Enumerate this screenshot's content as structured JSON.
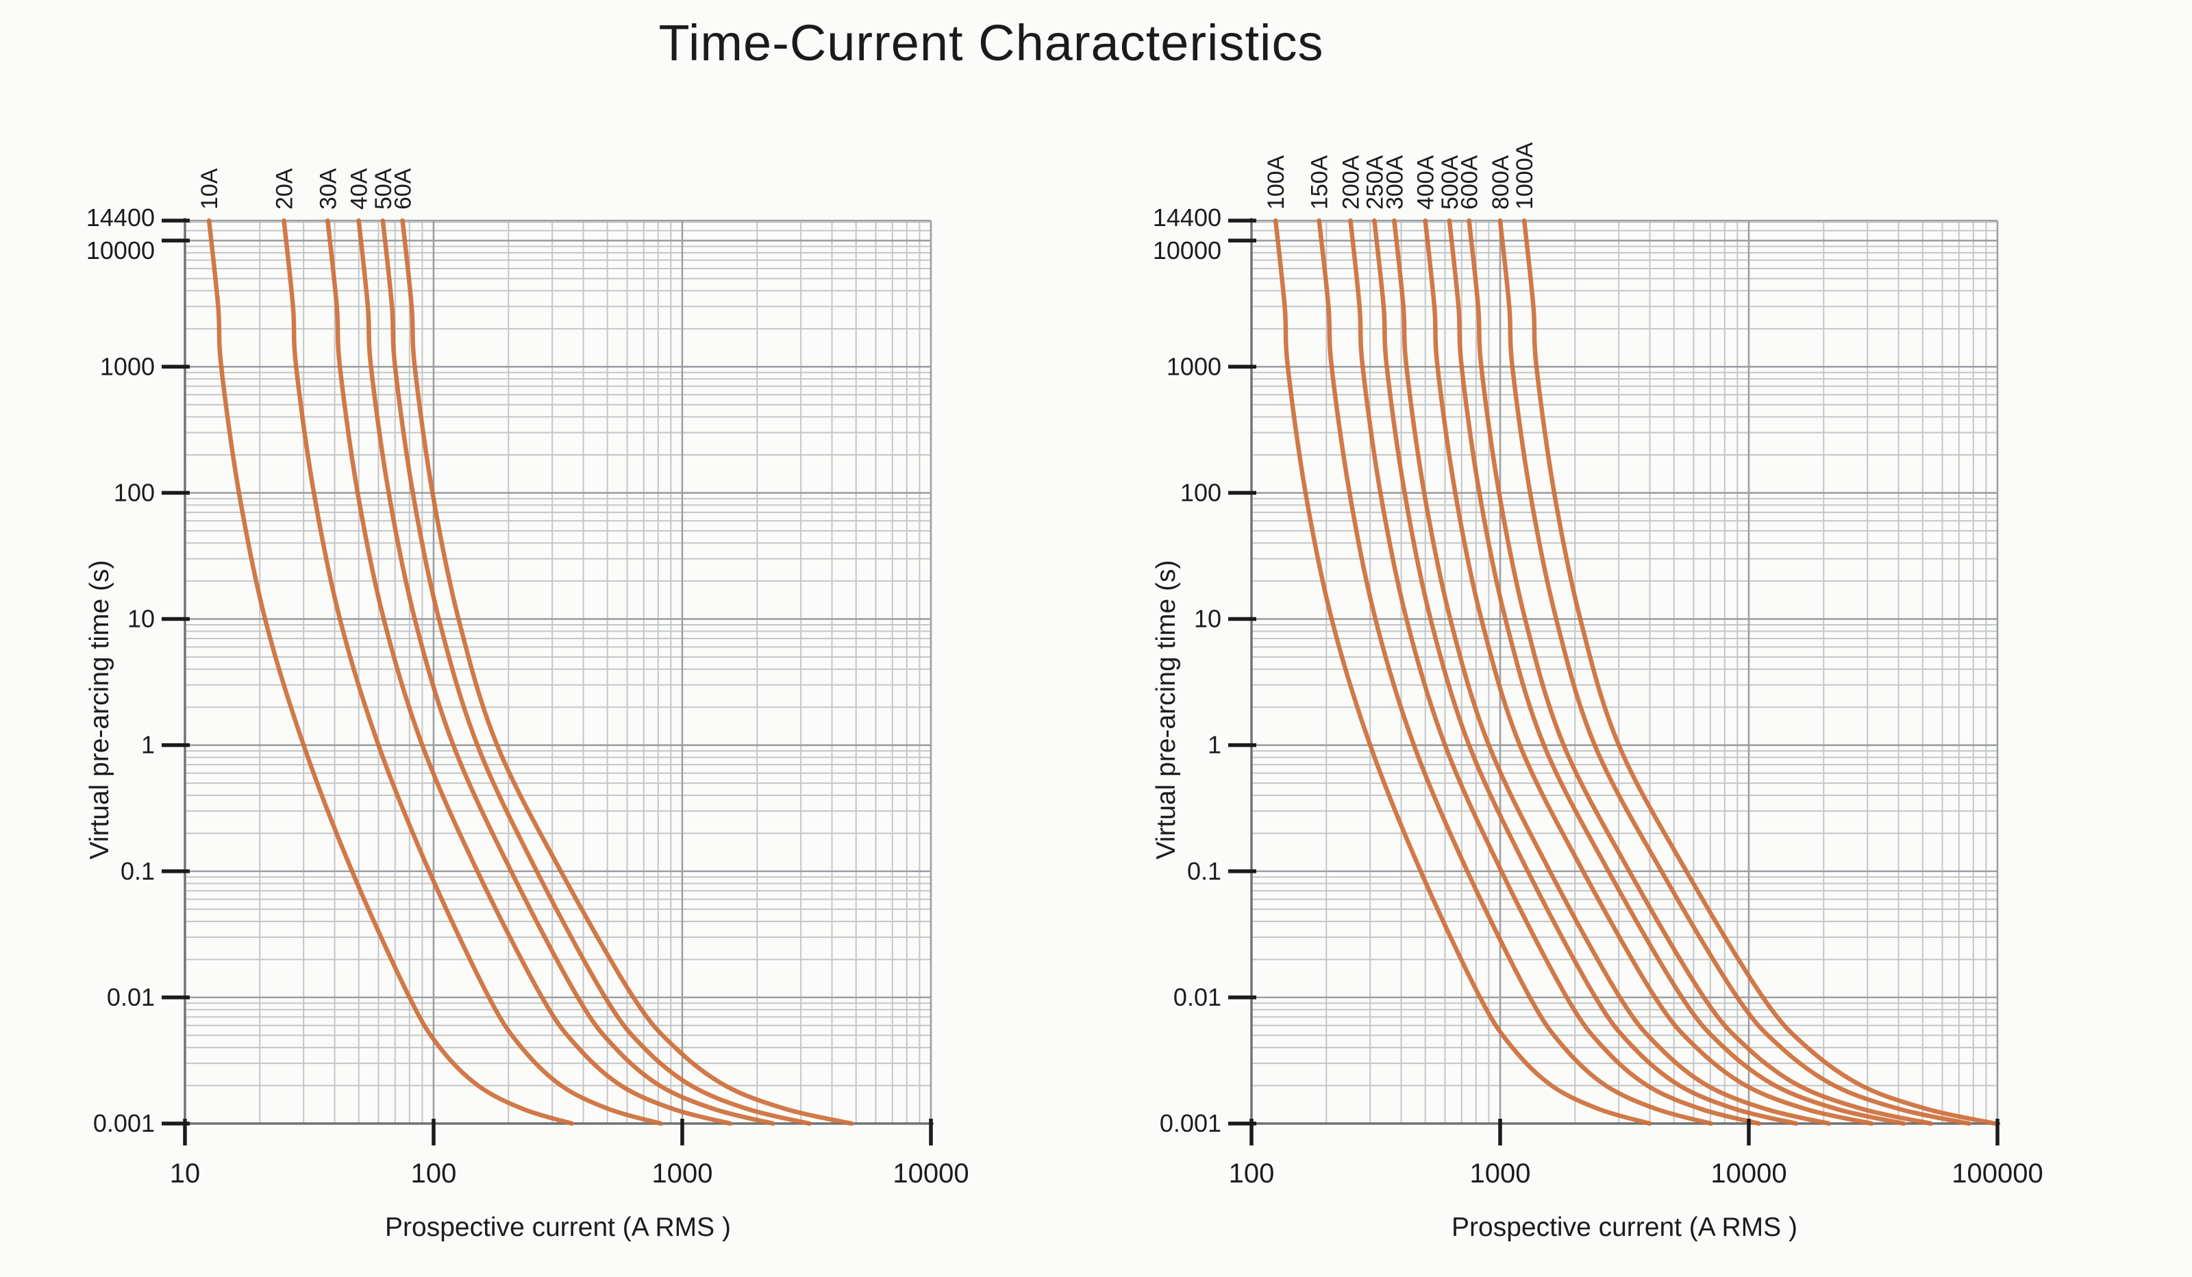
{
  "title": "Time-Current Characteristics",
  "colors": {
    "curve": "#cd6f3a",
    "grid_minor": "#c3c6c9",
    "grid_major": "#9ca0a4",
    "spine": "#6e7174",
    "tick": "#1b1b1b",
    "text": "#1c1c1c",
    "background": "#fbfbf9"
  },
  "chart_data": [
    {
      "id": "left",
      "type": "line",
      "title": "Time-Current Characteristics",
      "xlabel": "Prospective current (A RMS )",
      "ylabel": "Virtual pre-arcing time (s)",
      "x_scale": "log",
      "y_scale": "log",
      "xlim": [
        10,
        10000
      ],
      "ylim": [
        0.001,
        14400
      ],
      "x_ticks": [
        10,
        100,
        1000,
        10000
      ],
      "x_tick_labels": [
        "10",
        "100",
        "1000",
        "10000"
      ],
      "y_ticks": [
        14400,
        10000,
        1000,
        100,
        10,
        1,
        0.1,
        0.01,
        0.001
      ],
      "y_tick_labels": [
        "14400",
        "10000",
        "1000",
        "100",
        "10",
        "1",
        "0.1",
        "0.01",
        "0.001"
      ],
      "grid": "log major + minor, both axes",
      "legend_position": "curve labels rotated vertically above top edge",
      "series": [
        {
          "name": "10A",
          "points": [
            [
              12.5,
              14400
            ],
            [
              13.6,
              3000
            ],
            [
              14,
              1000
            ],
            [
              16.5,
              100
            ],
            [
              21,
              10
            ],
            [
              30,
              1
            ],
            [
              47,
              0.1
            ],
            [
              80,
              0.01
            ],
            [
              106,
              0.004
            ],
            [
              151,
              0.002
            ],
            [
              230,
              0.0013
            ],
            [
              360,
              0.001
            ]
          ]
        },
        {
          "name": "20A",
          "points": [
            [
              25,
              14400
            ],
            [
              27.2,
              3000
            ],
            [
              28,
              1000
            ],
            [
              33,
              100
            ],
            [
              42,
              10
            ],
            [
              60,
              1
            ],
            [
              96,
              0.1
            ],
            [
              167,
              0.01
            ],
            [
              226,
              0.004
            ],
            [
              326,
              0.002
            ],
            [
              508,
              0.0013
            ],
            [
              820,
              0.001
            ]
          ]
        },
        {
          "name": "30A",
          "points": [
            [
              37.5,
              14400
            ],
            [
              40.8,
              3000
            ],
            [
              42,
              1000
            ],
            [
              49.5,
              100
            ],
            [
              63,
              10
            ],
            [
              90,
              1
            ],
            [
              150,
              0.1
            ],
            [
              273,
              0.01
            ],
            [
              381,
              0.004
            ],
            [
              567,
              0.002
            ],
            [
              924,
              0.0013
            ],
            [
              1560,
              0.001
            ]
          ]
        },
        {
          "name": "40A",
          "points": [
            [
              50,
              14400
            ],
            [
              54.4,
              3000
            ],
            [
              56,
              1000
            ],
            [
              66,
              100
            ],
            [
              84,
              10
            ],
            [
              120,
              1
            ],
            [
              205,
              0.1
            ],
            [
              380,
              0.01
            ],
            [
              536,
              0.004
            ],
            [
              812,
              0.002
            ],
            [
              1348,
              0.0013
            ],
            [
              2320,
              0.001
            ]
          ]
        },
        {
          "name": "50A",
          "points": [
            [
              62.5,
              14400
            ],
            [
              68,
              3000
            ],
            [
              70,
              1000
            ],
            [
              82.5,
              100
            ],
            [
              105,
              10
            ],
            [
              150,
              1
            ],
            [
              260,
              0.1
            ],
            [
              490,
              0.01
            ],
            [
              700,
              0.004
            ],
            [
              1085,
              0.002
            ],
            [
              1840,
              0.0013
            ],
            [
              3250,
              0.001
            ]
          ]
        },
        {
          "name": "60A",
          "points": [
            [
              75,
              14400
            ],
            [
              81.6,
              3000
            ],
            [
              84,
              1000
            ],
            [
              99,
              100
            ],
            [
              126,
              10
            ],
            [
              180,
              1
            ],
            [
              325,
              0.1
            ],
            [
              636,
              0.01
            ],
            [
              936,
              0.004
            ],
            [
              1488,
              0.002
            ],
            [
              2620,
              0.0013
            ],
            [
              4800,
              0.001
            ]
          ]
        }
      ]
    },
    {
      "id": "right",
      "type": "line",
      "title": "Time-Current Characteristics",
      "xlabel": "Prospective current (A RMS )",
      "ylabel": "Virtual pre-arcing time (s)",
      "x_scale": "log",
      "y_scale": "log",
      "xlim": [
        100,
        100000
      ],
      "ylim": [
        0.001,
        14400
      ],
      "x_ticks": [
        100,
        1000,
        10000,
        100000
      ],
      "x_tick_labels": [
        "100",
        "1000",
        "10000",
        "100000"
      ],
      "y_ticks": [
        14400,
        10000,
        1000,
        100,
        10,
        1,
        0.1,
        0.01,
        0.001
      ],
      "y_tick_labels": [
        "14400",
        "10000",
        "1000",
        "100",
        "10",
        "1",
        "0.1",
        "0.01",
        "0.001"
      ],
      "grid": "log major + minor, both axes",
      "legend_position": "curve labels rotated vertically above top edge",
      "series": [
        {
          "name": "100A",
          "points": [
            [
              125,
              14400
            ],
            [
              136,
              3000
            ],
            [
              140,
              1000
            ],
            [
              165,
              100
            ],
            [
              210,
              10
            ],
            [
              300,
              1
            ],
            [
              479,
              0.1
            ],
            [
              830,
              0.01
            ],
            [
              1120,
              0.004
            ],
            [
              1610,
              0.002
            ],
            [
              2500,
              0.0013
            ],
            [
              4000,
              0.001
            ]
          ]
        },
        {
          "name": "150A",
          "points": [
            [
              187,
              14400
            ],
            [
              204,
              3000
            ],
            [
              210,
              1000
            ],
            [
              248,
              100
            ],
            [
              315,
              10
            ],
            [
              450,
              1
            ],
            [
              738,
              0.1
            ],
            [
              1317,
              0.01
            ],
            [
              1810,
              0.004
            ],
            [
              2660,
              0.002
            ],
            [
              4270,
              0.0013
            ],
            [
              7050,
              0.001
            ]
          ]
        },
        {
          "name": "200A",
          "points": [
            [
              250,
              14400
            ],
            [
              272,
              3000
            ],
            [
              280,
              1000
            ],
            [
              330,
              100
            ],
            [
              420,
              10
            ],
            [
              600,
              1
            ],
            [
              1012,
              0.1
            ],
            [
              1854,
              0.01
            ],
            [
              2600,
              0.004
            ],
            [
              3910,
              0.002
            ],
            [
              6450,
              0.0013
            ],
            [
              11000,
              0.001
            ]
          ]
        },
        {
          "name": "250A",
          "points": [
            [
              312,
              14400
            ],
            [
              340,
              3000
            ],
            [
              350,
              1000
            ],
            [
              413,
              100
            ],
            [
              525,
              10
            ],
            [
              750,
              1
            ],
            [
              1292,
              0.1
            ],
            [
              2418,
              0.01
            ],
            [
              3440,
              0.004
            ],
            [
              5270,
              0.002
            ],
            [
              8870,
              0.0013
            ],
            [
              15500,
              0.001
            ]
          ]
        },
        {
          "name": "300A",
          "points": [
            [
              375,
              14400
            ],
            [
              408,
              3000
            ],
            [
              420,
              1000
            ],
            [
              495,
              100
            ],
            [
              630,
              10
            ],
            [
              900,
              1
            ],
            [
              1585,
              0.1
            ],
            [
              3030,
              0.01
            ],
            [
              4380,
              0.004
            ],
            [
              6810,
              0.002
            ],
            [
              11760,
              0.0013
            ],
            [
              21000,
              0.001
            ]
          ]
        },
        {
          "name": "400A",
          "points": [
            [
              500,
              14400
            ],
            [
              544,
              3000
            ],
            [
              560,
              1000
            ],
            [
              660,
              100
            ],
            [
              840,
              10
            ],
            [
              1200,
              1
            ],
            [
              2156,
              0.1
            ],
            [
              4200,
              0.01
            ],
            [
              6150,
              0.004
            ],
            [
              9740,
              0.002
            ],
            [
              17000,
              0.0013
            ],
            [
              31200,
              0.001
            ]
          ]
        },
        {
          "name": "500A",
          "points": [
            [
              625,
              14400
            ],
            [
              680,
              3000
            ],
            [
              700,
              1000
            ],
            [
              825,
              100
            ],
            [
              1050,
              10
            ],
            [
              1500,
              1
            ],
            [
              2728,
              0.1
            ],
            [
              5385,
              0.01
            ],
            [
              7960,
              0.004
            ],
            [
              12760,
              0.002
            ],
            [
              22700,
              0.0013
            ],
            [
              42000,
              0.001
            ]
          ]
        },
        {
          "name": "600A",
          "points": [
            [
              750,
              14400
            ],
            [
              816,
              3000
            ],
            [
              840,
              1000
            ],
            [
              990,
              100
            ],
            [
              1260,
              10
            ],
            [
              1800,
              1
            ],
            [
              3309,
              0.1
            ],
            [
              6600,
              0.01
            ],
            [
              9840,
              0.004
            ],
            [
              15900,
              0.002
            ],
            [
              28800,
              0.0013
            ],
            [
              54000,
              0.001
            ]
          ]
        },
        {
          "name": "800A",
          "points": [
            [
              1000,
              14400
            ],
            [
              1088,
              3000
            ],
            [
              1120,
              1000
            ],
            [
              1320,
              100
            ],
            [
              1680,
              10
            ],
            [
              2400,
              1
            ],
            [
              4456,
              0.1
            ],
            [
              8992,
              0.01
            ],
            [
              13500,
              0.004
            ],
            [
              22100,
              0.002
            ],
            [
              40500,
              0.0013
            ],
            [
              76800,
              0.001
            ]
          ]
        },
        {
          "name": "1000A",
          "points": [
            [
              1250,
              14400
            ],
            [
              1360,
              3000
            ],
            [
              1400,
              1000
            ],
            [
              1650,
              100
            ],
            [
              2100,
              10
            ],
            [
              3000,
              1
            ],
            [
              5612,
              0.1
            ],
            [
              11400,
              0.01
            ],
            [
              17200,
              0.004
            ],
            [
              28400,
              0.002
            ],
            [
              52300,
              0.0013
            ],
            [
              98000,
              0.001
            ]
          ]
        }
      ]
    }
  ]
}
